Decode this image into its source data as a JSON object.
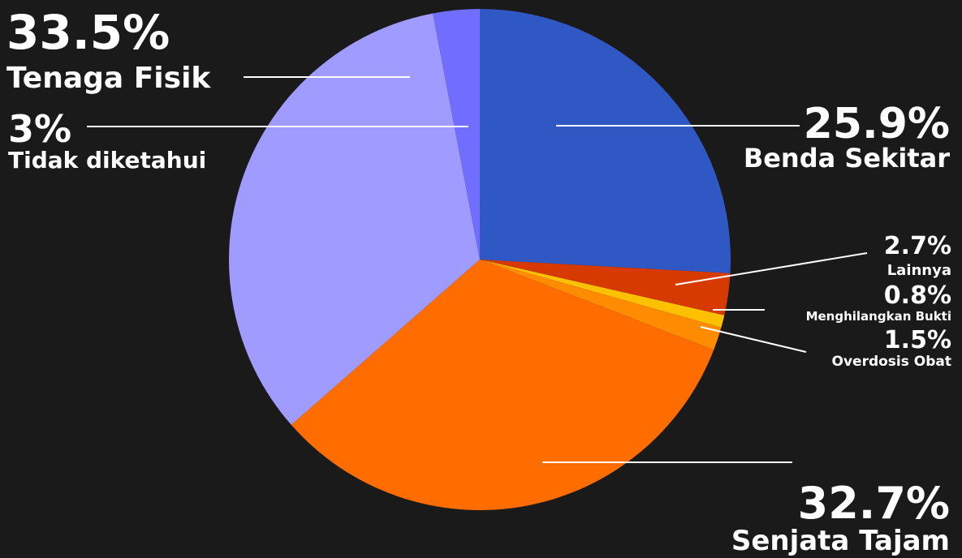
{
  "chart_data": {
    "type": "pie",
    "title": "",
    "slices": [
      {
        "label": "Benda Sekitar",
        "value": 25.9,
        "value_label": "25.9%",
        "color": "#2f58c4"
      },
      {
        "label": "Lainnya",
        "value": 2.7,
        "value_label": "2.7%",
        "color": "#d63a00"
      },
      {
        "label": "Menghilangkan Bukti",
        "value": 0.8,
        "value_label": "0.8%",
        "color": "#ffc000"
      },
      {
        "label": "Overdosis Obat",
        "value": 1.5,
        "value_label": "1.5%",
        "color": "#ff8c00"
      },
      {
        "label": "Senjata Tajam",
        "value": 32.7,
        "value_label": "32.7%",
        "color": "#ff6c00"
      },
      {
        "label": "Tenaga Fisik",
        "value": 33.5,
        "value_label": "33.5%",
        "color": "#a09bff"
      },
      {
        "label": "Tidak diketahui",
        "value": 3.0,
        "value_label": "3%",
        "color": "#706dff"
      }
    ],
    "legend": "none"
  }
}
